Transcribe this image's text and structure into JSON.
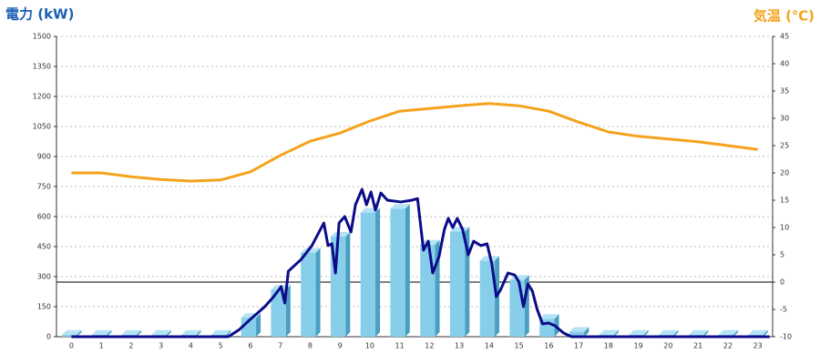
{
  "chart_data": {
    "type": "bar",
    "title_left": "電力 (kW)",
    "title_right": "気温 (℃)",
    "categories": [
      "0",
      "1",
      "2",
      "3",
      "4",
      "5",
      "6",
      "7",
      "8",
      "9",
      "10",
      "11",
      "12",
      "13",
      "14",
      "15",
      "16",
      "17",
      "18",
      "19",
      "20",
      "21",
      "22",
      "23"
    ],
    "series": [
      {
        "type": "bar",
        "color": "#87ceeb",
        "values": [
          10,
          10,
          10,
          10,
          10,
          10,
          95,
          235,
          420,
          500,
          620,
          640,
          460,
          525,
          380,
          285,
          90,
          25,
          10,
          10,
          10,
          10,
          10,
          10
        ]
      },
      {
        "type": "line",
        "axis": "y2",
        "color": "#f5a21c",
        "values": [
          20,
          20,
          19.3,
          18.8,
          18.5,
          18.7,
          20.2,
          23.2,
          25.8,
          27.3,
          29.5,
          31.3,
          31.8,
          32.3,
          32.7,
          32.3,
          31.3,
          29.3,
          27.5,
          26.7,
          26.2,
          25.7,
          25,
          24.3
        ]
      },
      {
        "type": "line",
        "color": "#0c0c8a",
        "x": [
          0,
          5.26,
          5.63,
          6.02,
          6.48,
          6.78,
          7.03,
          7.15,
          7.27,
          7.7,
          8.06,
          8.3,
          8.46,
          8.6,
          8.73,
          8.85,
          8.97,
          9.16,
          9.37,
          9.52,
          9.74,
          9.89,
          10.04,
          10.19,
          10.37,
          10.59,
          11.04,
          11.41,
          11.6,
          11.8,
          11.96,
          12.11,
          12.32,
          12.5,
          12.63,
          12.78,
          12.93,
          13.11,
          13.3,
          13.48,
          13.72,
          13.93,
          14.09,
          14.24,
          14.39,
          14.63,
          14.85,
          15,
          15.15,
          15.3,
          15.45,
          15.61,
          15.79,
          16,
          16.2,
          16.5,
          16.76,
          23.4
        ],
        "values": [
          0,
          0,
          36,
          90,
          150,
          200,
          250,
          168,
          327,
          386,
          455,
          523,
          568,
          455,
          464,
          318,
          568,
          600,
          523,
          659,
          736,
          659,
          723,
          632,
          718,
          682,
          673,
          682,
          690,
          432,
          477,
          318,
          400,
          536,
          591,
          545,
          591,
          536,
          409,
          477,
          455,
          464,
          364,
          200,
          236,
          318,
          309,
          273,
          150,
          264,
          227,
          136,
          64,
          68,
          55,
          18,
          0,
          0
        ]
      }
    ],
    "ylim": [
      0,
      1500
    ],
    "yticks": [
      0,
      150,
      300,
      450,
      600,
      750,
      900,
      1050,
      1200,
      1350,
      1500
    ],
    "y2lim": [
      -10,
      45
    ],
    "y2ticks": [
      -10,
      -5,
      0,
      5,
      10,
      15,
      20,
      25,
      30,
      35,
      40,
      45
    ],
    "grid": true,
    "y2_zero_line": true
  }
}
